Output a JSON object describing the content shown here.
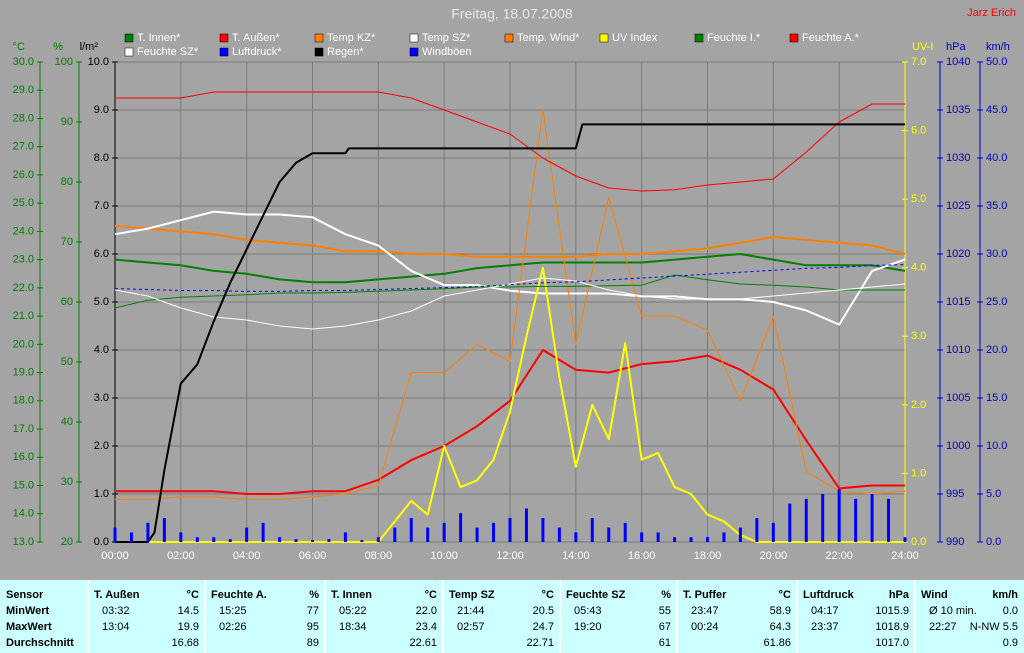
{
  "chart_data": {
    "type": "line",
    "title": "Freitag, 18.07.2008",
    "author": "Jarz Erich",
    "xlim": [
      0,
      24
    ],
    "xticks": [
      {
        "value": 0,
        "label": "00:00"
      },
      {
        "value": 2,
        "label": "02:00"
      },
      {
        "value": 4,
        "label": "04:00"
      },
      {
        "value": 6,
        "label": "06:00"
      },
      {
        "value": 8,
        "label": "08:00"
      },
      {
        "value": 10,
        "label": "10:00"
      },
      {
        "value": 12,
        "label": "12:00"
      },
      {
        "value": 14,
        "label": "14:00"
      },
      {
        "value": 16,
        "label": "16:00"
      },
      {
        "value": 18,
        "label": "18:00"
      },
      {
        "value": 20,
        "label": "20:00"
      },
      {
        "value": 22,
        "label": "22:00"
      },
      {
        "value": 24,
        "label": "24:00"
      }
    ],
    "grid": true,
    "grid_axis": "l/m²",
    "axes": [
      {
        "label": "°C",
        "side": "left",
        "color": "#008000",
        "lim": [
          13,
          30
        ],
        "ticks": [
          {
            "value": 13,
            "label": "13.0"
          },
          {
            "value": 14,
            "label": "14.0"
          },
          {
            "value": 15,
            "label": "15.0"
          },
          {
            "value": 16,
            "label": "16.0"
          },
          {
            "value": 17,
            "label": "17.0"
          },
          {
            "value": 18,
            "label": "18.0"
          },
          {
            "value": 19,
            "label": "19.0"
          },
          {
            "value": 20,
            "label": "20.0"
          },
          {
            "value": 21,
            "label": "21.0"
          },
          {
            "value": 22,
            "label": "22.0"
          },
          {
            "value": 23,
            "label": "23.0"
          },
          {
            "value": 24,
            "label": "24.0"
          },
          {
            "value": 25,
            "label": "25.0"
          },
          {
            "value": 26,
            "label": "26.0"
          },
          {
            "value": 27,
            "label": "27.0"
          },
          {
            "value": 28,
            "label": "28.0"
          },
          {
            "value": 29,
            "label": "29.0"
          },
          {
            "value": 30,
            "label": "30.0"
          }
        ]
      },
      {
        "label": "%",
        "side": "left",
        "color": "#008000",
        "lim": [
          20,
          100
        ],
        "ticks": [
          20,
          30,
          40,
          50,
          60,
          70,
          80,
          90,
          100
        ]
      },
      {
        "label": "l/m²",
        "side": "left",
        "color": "#000000",
        "lim": [
          0,
          10
        ],
        "ticks": [
          {
            "value": 0,
            "label": "0.0"
          },
          {
            "value": 1,
            "label": "1.0"
          },
          {
            "value": 2,
            "label": "2.0"
          },
          {
            "value": 3,
            "label": "3.0"
          },
          {
            "value": 4,
            "label": "4.0"
          },
          {
            "value": 5,
            "label": "5.0"
          },
          {
            "value": 6,
            "label": "6.0"
          },
          {
            "value": 7,
            "label": "7.0"
          },
          {
            "value": 8,
            "label": "8.0"
          },
          {
            "value": 9,
            "label": "9.0"
          },
          {
            "value": 10,
            "label": "10.0"
          }
        ]
      },
      {
        "label": "UV-I",
        "side": "right",
        "color": "#ffff00",
        "lim": [
          0,
          7
        ],
        "ticks": [
          {
            "value": 0,
            "label": "0.0"
          },
          {
            "value": 1,
            "label": "1.0"
          },
          {
            "value": 2,
            "label": "2.0"
          },
          {
            "value": 3,
            "label": "3.0"
          },
          {
            "value": 4,
            "label": "4.0"
          },
          {
            "value": 5,
            "label": "5.0"
          },
          {
            "value": 6,
            "label": "6.0"
          },
          {
            "value": 7,
            "label": "7.0"
          }
        ]
      },
      {
        "label": "hPa",
        "side": "right",
        "color": "#0000c0",
        "lim": [
          990,
          1040
        ],
        "ticks": [
          990,
          995,
          1000,
          1005,
          1010,
          1015,
          1020,
          1025,
          1030,
          1035,
          1040
        ]
      },
      {
        "label": "km/h",
        "side": "right",
        "color": "#0000c0",
        "lim": [
          0,
          50
        ],
        "ticks": [
          {
            "value": 0,
            "label": "0.0"
          },
          {
            "value": 5,
            "label": "5.0"
          },
          {
            "value": 10,
            "label": "10.0"
          },
          {
            "value": 15,
            "label": "15.0"
          },
          {
            "value": 20,
            "label": "20.0"
          },
          {
            "value": 25,
            "label": "25.0"
          },
          {
            "value": 30,
            "label": "30.0"
          },
          {
            "value": 35,
            "label": "35.0"
          },
          {
            "value": 40,
            "label": "40.0"
          },
          {
            "value": 45,
            "label": "45.0"
          },
          {
            "value": 50,
            "label": "50.0"
          }
        ]
      }
    ],
    "x": [
      0,
      1,
      2,
      3,
      4,
      5,
      6,
      7,
      8,
      9,
      10,
      11,
      12,
      13,
      14,
      15,
      16,
      17,
      18,
      19,
      20,
      21,
      22,
      23,
      24
    ],
    "series": [
      {
        "name": "T. Innen*",
        "color": "#008000",
        "width": 2,
        "axis": "°C",
        "values": [
          23.0,
          22.9,
          22.8,
          22.6,
          22.5,
          22.3,
          22.2,
          22.2,
          22.3,
          22.4,
          22.5,
          22.7,
          22.8,
          22.9,
          22.9,
          22.9,
          22.9,
          23.0,
          23.1,
          23.2,
          23.0,
          22.8,
          22.8,
          22.8,
          22.6
        ]
      },
      {
        "name": "T. Außen*",
        "color": "#ff0000",
        "width": 2,
        "axis": "°C",
        "values": [
          14.8,
          14.8,
          14.8,
          14.8,
          14.7,
          14.7,
          14.8,
          14.8,
          15.2,
          15.9,
          16.4,
          17.1,
          18.0,
          19.8,
          19.1,
          19.0,
          19.3,
          19.4,
          19.6,
          19.1,
          18.4,
          16.6,
          14.9,
          15.0,
          15.0
        ]
      },
      {
        "name": "Temp KZ*",
        "color": "#ff8000",
        "width": 2,
        "axis": "°C",
        "values": [
          24.2,
          24.1,
          24.0,
          23.9,
          23.7,
          23.6,
          23.5,
          23.3,
          23.3,
          23.2,
          23.2,
          23.1,
          23.1,
          23.1,
          23.1,
          23.2,
          23.2,
          23.3,
          23.4,
          23.6,
          23.8,
          23.7,
          23.6,
          23.5,
          23.2
        ]
      },
      {
        "name": "Temp SZ*",
        "color": "#ffffff",
        "width": 2,
        "axis": "°C",
        "values": [
          23.9,
          24.1,
          24.4,
          24.7,
          24.6,
          24.6,
          24.5,
          23.9,
          23.5,
          22.6,
          22.1,
          22.1,
          21.9,
          21.8,
          21.8,
          21.8,
          21.7,
          21.7,
          21.6,
          21.6,
          21.5,
          21.2,
          20.7,
          22.6,
          23.0
        ]
      },
      {
        "name": "Temp. Wind*",
        "color": "#ff8000",
        "width": 1,
        "axis": "°C",
        "values": [
          14.5,
          14.5,
          14.6,
          14.6,
          14.5,
          14.5,
          14.6,
          14.7,
          15.0,
          19.0,
          19.0,
          20.0,
          19.4,
          28.3,
          20.0,
          25.2,
          21.0,
          21.0,
          20.5,
          18.0,
          21.0,
          15.5,
          14.8,
          14.7,
          14.8
        ]
      },
      {
        "name": "UV Index",
        "color": "#ffff00",
        "width": 2,
        "axis": "UV-I",
        "x": [
          0,
          8,
          8.5,
          9,
          9.5,
          10,
          10.5,
          11,
          11.5,
          12,
          12.5,
          13,
          13.5,
          14,
          14.5,
          15,
          15.5,
          16,
          16.5,
          17,
          17.5,
          18,
          18.5,
          19,
          19.5,
          20,
          24
        ],
        "values": [
          0,
          0,
          0.3,
          0.6,
          0.4,
          1.4,
          0.8,
          0.9,
          1.2,
          1.9,
          3.0,
          4.0,
          2.4,
          1.1,
          2.0,
          1.5,
          2.9,
          1.2,
          1.3,
          0.8,
          0.7,
          0.4,
          0.3,
          0.1,
          0,
          0,
          0
        ]
      },
      {
        "name": "Feuchte I.*",
        "color": "#008000",
        "width": 1,
        "axis": "%",
        "values": [
          59.0,
          60.3,
          60.8,
          61.0,
          61.2,
          61.5,
          61.5,
          61.6,
          61.8,
          62.0,
          62.2,
          62.5,
          62.5,
          62.6,
          62.6,
          62.7,
          62.8,
          64.5,
          63.7,
          63.0,
          62.8,
          62.5,
          62.0,
          62.0,
          62.0
        ]
      },
      {
        "name": "Feuchte A.*",
        "color": "#ff0000",
        "width": 1,
        "axis": "%",
        "values": [
          94.0,
          94.0,
          94.0,
          95.0,
          95.0,
          95.0,
          95.0,
          95.0,
          95.0,
          94.0,
          92.0,
          90.0,
          88.0,
          84.0,
          81.0,
          79.0,
          78.5,
          78.7,
          79.5,
          80.0,
          80.5,
          85.0,
          90.0,
          93.0,
          93.0
        ]
      },
      {
        "name": "Feuchte SZ*",
        "color": "#ffffff",
        "width": 1,
        "axis": "%",
        "values": [
          62,
          61,
          59,
          57.5,
          57,
          56,
          55.5,
          56,
          57,
          58.5,
          61,
          62,
          63,
          64,
          63.5,
          62,
          61,
          60.5,
          60.5,
          60.5,
          61,
          61.5,
          62,
          62.5,
          63
        ]
      },
      {
        "name": "Luftdruck*",
        "color": "#0000ff",
        "width": 1,
        "style": "dotted",
        "axis": "hPa",
        "values": [
          1016.4,
          1016.3,
          1016.2,
          1016.2,
          1016.1,
          1016.1,
          1016.2,
          1016.2,
          1016.3,
          1016.4,
          1016.5,
          1016.6,
          1016.8,
          1017.0,
          1017.1,
          1017.3,
          1017.5,
          1017.7,
          1017.9,
          1018.1,
          1018.3,
          1018.5,
          1018.6,
          1018.8,
          1018.9
        ]
      },
      {
        "name": "Regen*",
        "color": "#000000",
        "width": 2,
        "axis": "l/m²",
        "x": [
          0,
          1,
          1.2,
          1.5,
          2,
          2.5,
          3,
          3.5,
          4,
          4.5,
          5,
          5.5,
          6,
          7,
          7.1,
          14,
          14.2,
          24
        ],
        "values": [
          0,
          0,
          0.2,
          1.5,
          3.3,
          3.7,
          4.6,
          5.4,
          6.1,
          6.8,
          7.5,
          7.9,
          8.1,
          8.1,
          8.2,
          8.2,
          8.7,
          8.7
        ]
      },
      {
        "name": "Windböen",
        "color": "#0000ff",
        "type": "bar",
        "axis": "km/h",
        "x": [
          0,
          0.5,
          1,
          1.5,
          2,
          2.5,
          3,
          3.5,
          4,
          4.5,
          5,
          5.5,
          6,
          6.5,
          7,
          7.5,
          8,
          8.5,
          9,
          9.5,
          10,
          10.5,
          11,
          11.5,
          12,
          12.5,
          13,
          13.5,
          14,
          14.5,
          15,
          15.5,
          16,
          16.5,
          17,
          17.5,
          18,
          18.5,
          19,
          19.5,
          20,
          20.5,
          21,
          21.5,
          22,
          22.5,
          23,
          23.5,
          24
        ],
        "values": [
          1.5,
          1.0,
          2.0,
          2.5,
          1.0,
          0.5,
          0.5,
          0.3,
          1.5,
          2.0,
          0.5,
          0.3,
          0.2,
          0.3,
          1.0,
          0.2,
          0.5,
          1.5,
          2.5,
          1.5,
          2.0,
          3.0,
          1.5,
          2.0,
          2.5,
          3.5,
          2.5,
          1.5,
          1.0,
          2.5,
          1.5,
          2.0,
          1.0,
          1.0,
          0.5,
          0.5,
          0.5,
          1.0,
          1.5,
          2.5,
          2.0,
          4.0,
          4.5,
          5.0,
          5.5,
          4.5,
          5.0,
          4.5,
          0.5
        ]
      }
    ]
  },
  "table": {
    "header": "Sensor",
    "row_labels": [
      "MinWert",
      "MaxWert",
      "Durchschnitt"
    ],
    "columns": [
      {
        "name": "T. Außen",
        "unit": "°C",
        "min": [
          "03:32",
          "14.5"
        ],
        "max": [
          "13:04",
          "19.9"
        ],
        "avg": "16.68"
      },
      {
        "name": "Feuchte A.",
        "unit": "%",
        "min": [
          "15:25",
          "77"
        ],
        "max": [
          "02:26",
          "95"
        ],
        "avg": "89"
      },
      {
        "name": "T. Innen",
        "unit": "°C",
        "min": [
          "05:22",
          "22.0"
        ],
        "max": [
          "18:34",
          "23.4"
        ],
        "avg": "22.61"
      },
      {
        "name": "Temp SZ",
        "unit": "°C",
        "min": [
          "21:44",
          "20.5"
        ],
        "max": [
          "02:57",
          "24.7"
        ],
        "avg": "22.71"
      },
      {
        "name": "Feuchte SZ",
        "unit": "%",
        "min": [
          "05:43",
          "55"
        ],
        "max": [
          "19:20",
          "67"
        ],
        "avg": "61"
      },
      {
        "name": "T. Puffer",
        "unit": "°C",
        "min": [
          "23:47",
          "58.9"
        ],
        "max": [
          "00:24",
          "64.3"
        ],
        "avg": "61.86"
      },
      {
        "name": "Luftdruck",
        "unit": "hPa",
        "min": [
          "04:17",
          "1015.9"
        ],
        "max": [
          "23:37",
          "1018.9"
        ],
        "avg": "1017.0"
      },
      {
        "name": "Wind",
        "unit": "km/h",
        "min": [
          "Ø 10 min.",
          "0.0"
        ],
        "max": [
          "22:27",
          "N-NW 5.5"
        ],
        "avg": "0.9"
      }
    ]
  }
}
